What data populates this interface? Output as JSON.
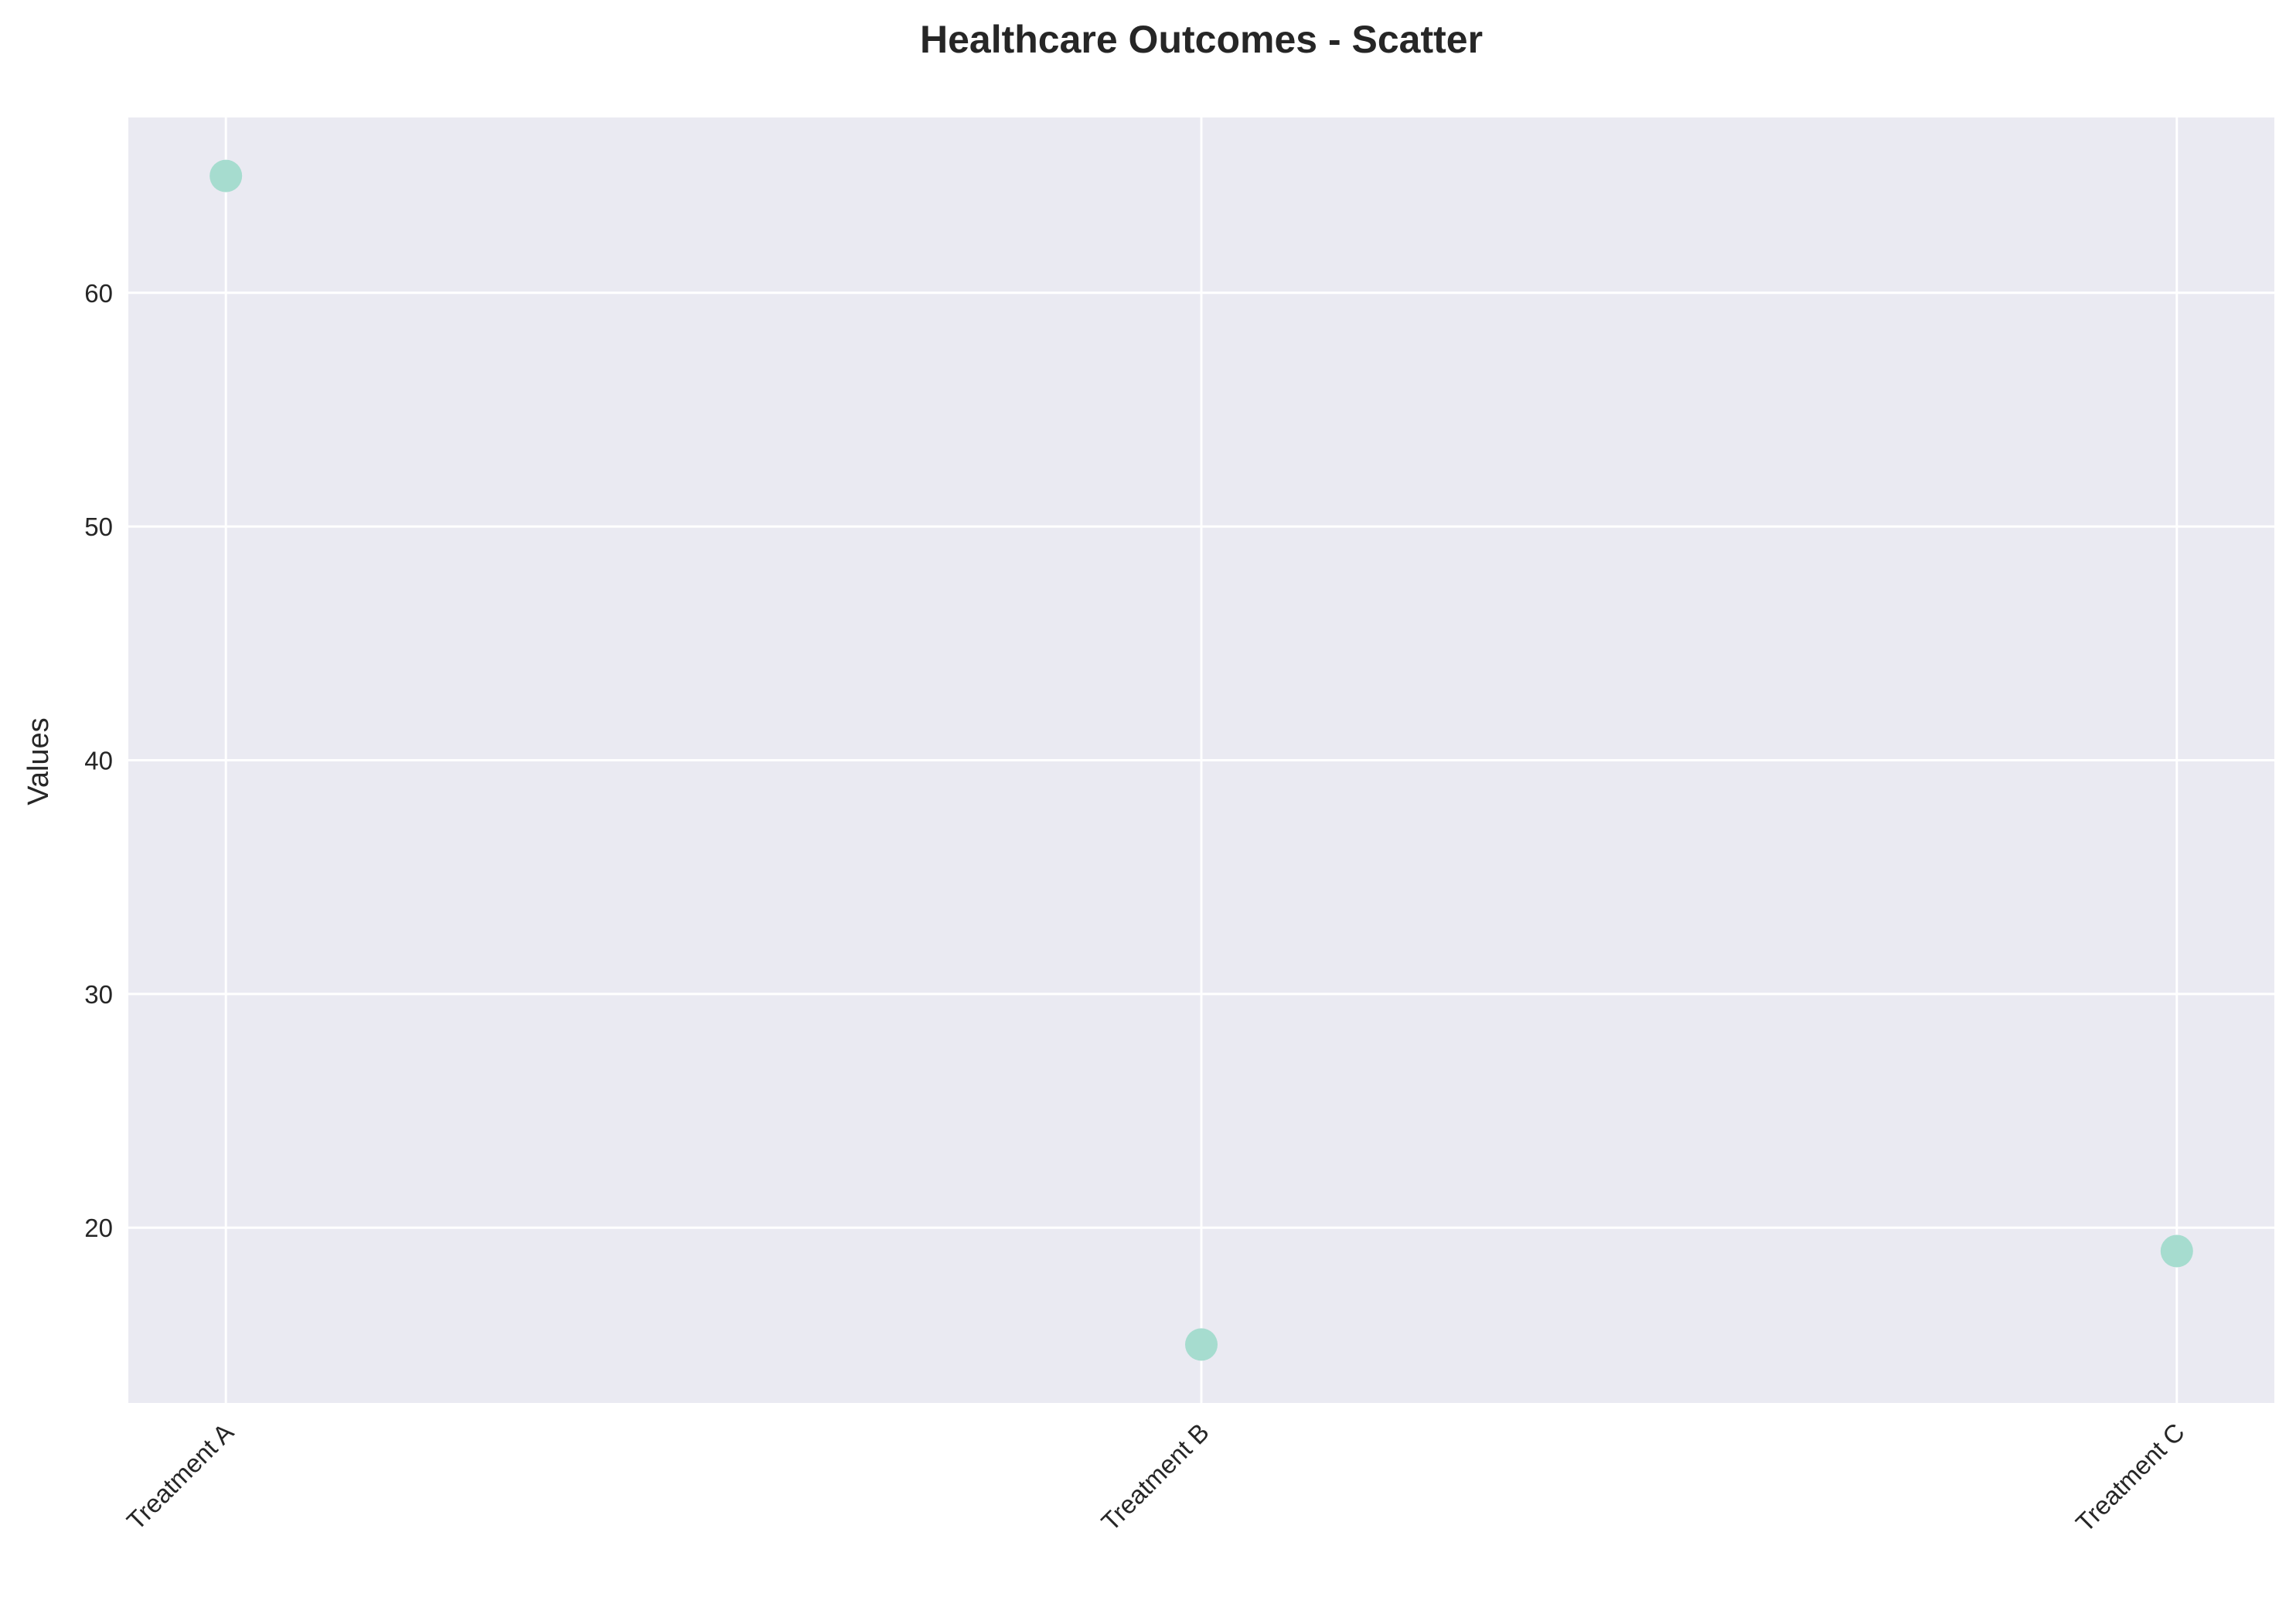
{
  "chart_data": {
    "type": "scatter",
    "title": "Healthcare Outcomes - Scatter",
    "xlabel": "",
    "ylabel": "Values",
    "categories": [
      "Treatment A",
      "Treatment B",
      "Treatment C"
    ],
    "values": [
      65,
      15,
      19
    ],
    "ylim": [
      12.5,
      67.5
    ],
    "yticks": [
      20,
      30,
      40,
      50,
      60
    ],
    "grid": true,
    "legend": "none",
    "colors": {
      "plot_background": "#eaeaf2",
      "grid": "#ffffff",
      "point": "#a6dccf",
      "text": "#262626"
    }
  }
}
